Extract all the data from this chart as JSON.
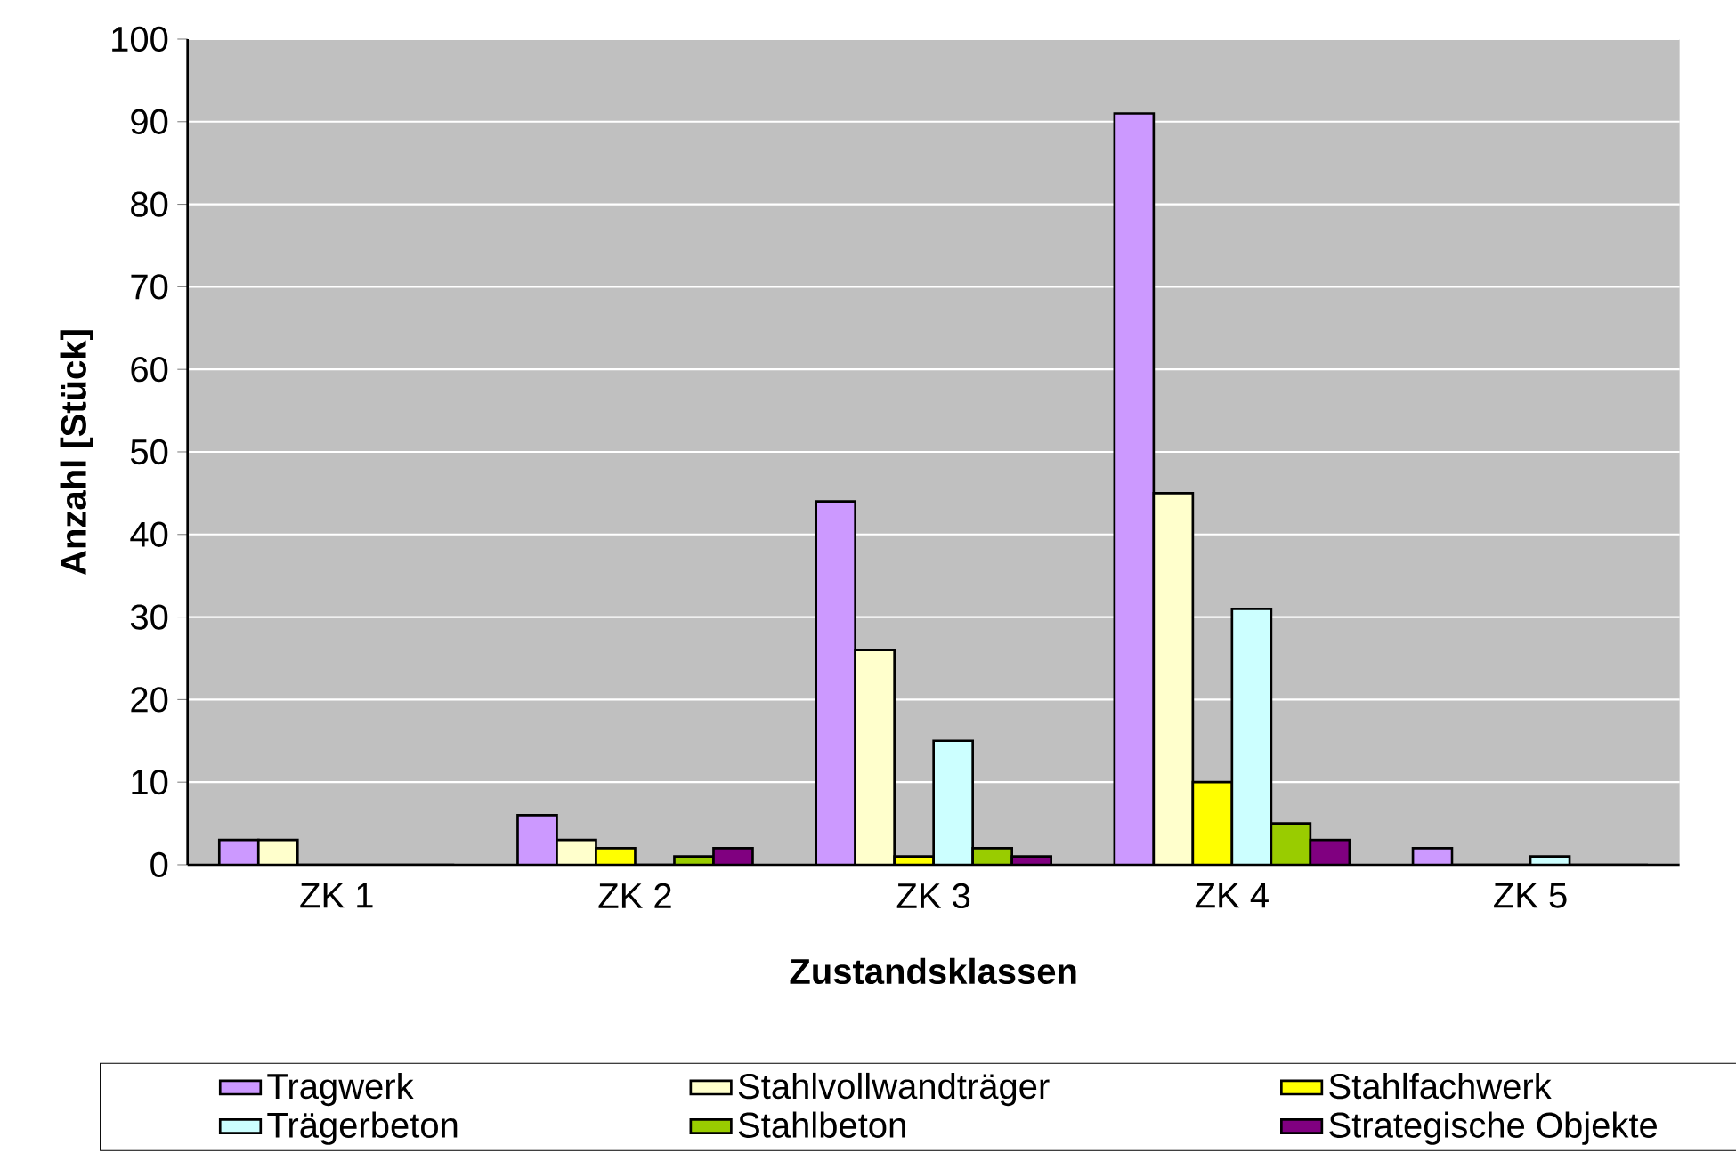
{
  "chart_data": {
    "type": "bar",
    "xlabel": "Zustandsklassen",
    "ylabel": "Anzahl [Stück]",
    "categories": [
      "ZK 1",
      "ZK 2",
      "ZK 3",
      "ZK 4",
      "ZK 5"
    ],
    "series": [
      {
        "name": "Tragwerk",
        "color": "#cc99ff",
        "values": [
          3,
          6,
          44,
          91,
          2
        ]
      },
      {
        "name": "Stahlvollwandträger",
        "color": "#ffffcc",
        "values": [
          3,
          3,
          26,
          45,
          0
        ]
      },
      {
        "name": "Stahlfachwerk",
        "color": "#ffff00",
        "values": [
          0,
          2,
          1,
          10,
          0
        ]
      },
      {
        "name": "Trägerbeton",
        "color": "#ccffff",
        "values": [
          0,
          0,
          15,
          31,
          1
        ]
      },
      {
        "name": "Stahlbeton",
        "color": "#99cc00",
        "values": [
          0,
          1,
          2,
          5,
          0
        ]
      },
      {
        "name": "Strategische Objekte",
        "color": "#800080",
        "values": [
          0,
          2,
          1,
          3,
          0
        ]
      }
    ],
    "ylim": [
      0,
      100
    ],
    "yticks": [
      0,
      10,
      20,
      30,
      40,
      50,
      60,
      70,
      80,
      90,
      100
    ],
    "grid": "y",
    "legend": "bottom"
  }
}
